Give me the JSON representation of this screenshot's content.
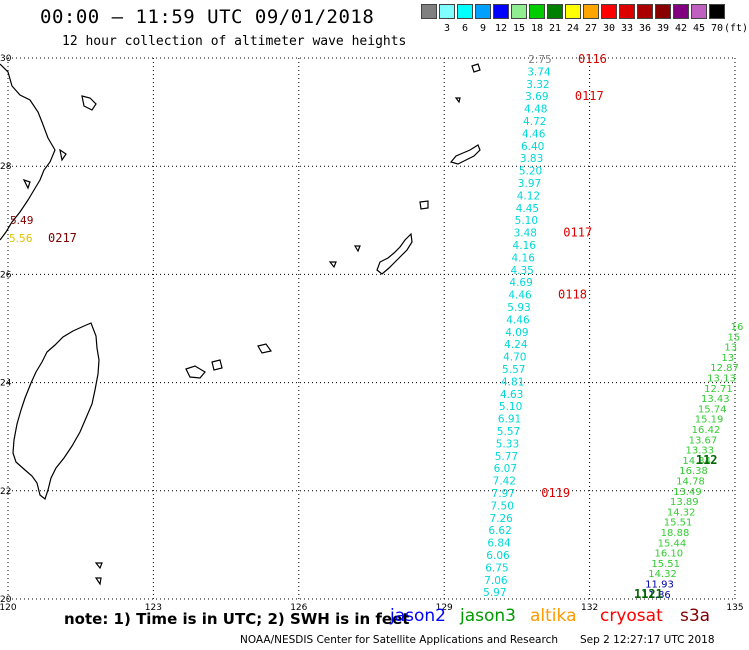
{
  "title": "00:00 – 11:59 UTC 09/01/2018",
  "subtitle": "12 hour collection of altimeter wave heights",
  "legend": {
    "unit": "(ft)",
    "bins": [
      {
        "label": "",
        "color": "#808080"
      },
      {
        "label": "3",
        "color": "#7fffff"
      },
      {
        "label": "6",
        "color": "#00ffff"
      },
      {
        "label": "9",
        "color": "#00a0ff"
      },
      {
        "label": "12",
        "color": "#0000ff"
      },
      {
        "label": "15",
        "color": "#90ee90"
      },
      {
        "label": "18",
        "color": "#00cc00"
      },
      {
        "label": "21",
        "color": "#008000"
      },
      {
        "label": "24",
        "color": "#ffff00"
      },
      {
        "label": "27",
        "color": "#ffa500"
      },
      {
        "label": "30",
        "color": "#ff0000"
      },
      {
        "label": "33",
        "color": "#dd0000"
      },
      {
        "label": "36",
        "color": "#aa0000"
      },
      {
        "label": "39",
        "color": "#880000"
      },
      {
        "label": "42",
        "color": "#800080"
      },
      {
        "label": "45",
        "color": "#c060c0"
      },
      {
        "label": "70",
        "color": "#000000"
      }
    ]
  },
  "axes": {
    "lat_ticks": [
      "30",
      "28",
      "26",
      "24",
      "22",
      "20"
    ],
    "lon_ticks": [
      "120",
      "123",
      "126",
      "129",
      "132",
      "135"
    ]
  },
  "tracks": [
    {
      "sat": "jason3",
      "color": "#00d8d8",
      "values": [
        "2.75",
        "3.74",
        "3.32",
        "3.69",
        "4.48",
        "4.72",
        "4.46",
        "6.40",
        "3.83",
        "5.20",
        "3.97",
        "4.12",
        "4.45",
        "5.10",
        "3.48",
        "4.16",
        "4.16",
        "4.35",
        "4.69",
        "4.46",
        "5.93",
        "4.46",
        "4.09",
        "4.24",
        "4.70",
        "5.57",
        "4.81",
        "4.63",
        "5.10",
        "6.91",
        "5.57",
        "5.33",
        "5.77",
        "6.07",
        "7.42",
        "7.97",
        "7.50",
        "7.26",
        "6.62",
        "6.84",
        "6.06",
        "6.75",
        "7.06",
        "5.97"
      ],
      "times": [
        {
          "text": "0116",
          "at": 0
        },
        {
          "text": "0117",
          "at": 3
        },
        {
          "text": "0117",
          "at": 14
        },
        {
          "text": "0118",
          "at": 19
        },
        {
          "text": "0119",
          "at": 35
        }
      ]
    },
    {
      "sat": "jason3",
      "color": "#33cc33",
      "values": [
        "16",
        "15",
        "13",
        "13",
        "12.87",
        "13.13",
        "12.71",
        "13.43",
        "15.74",
        "15.19",
        "16.42",
        "13.67",
        "13.33",
        "14.34",
        "16.38",
        "14.78",
        "13.49",
        "13.89",
        "14.32",
        "15.51",
        "18.88",
        "15.44",
        "16.10",
        "15.51",
        "14.32",
        "11.93",
        "11.86"
      ],
      "times": [
        {
          "text": "112",
          "at": 13
        },
        {
          "text": "1121",
          "at": 26
        }
      ]
    },
    {
      "sat": "cryosat",
      "color": "#800000",
      "values": [
        "5.49",
        "5.56"
      ],
      "times": [
        {
          "text": "0217",
          "at": 1
        }
      ]
    }
  ],
  "notes": "note: 1) Time is in UTC; 2) SWH is in feet",
  "satellites": [
    {
      "name": "jason2",
      "color": "#0000ff"
    },
    {
      "name": "jason3",
      "color": "#009900"
    },
    {
      "name": "altika",
      "color": "#ff9900"
    },
    {
      "name": "cryosat",
      "color": "#ff0000"
    },
    {
      "name": "s3a",
      "color": "#800000"
    }
  ],
  "credit": "NOAA/NESDIS Center for Satellite Applications and Research",
  "stamp": "Sep  2 12:27:17 UTC 2018"
}
